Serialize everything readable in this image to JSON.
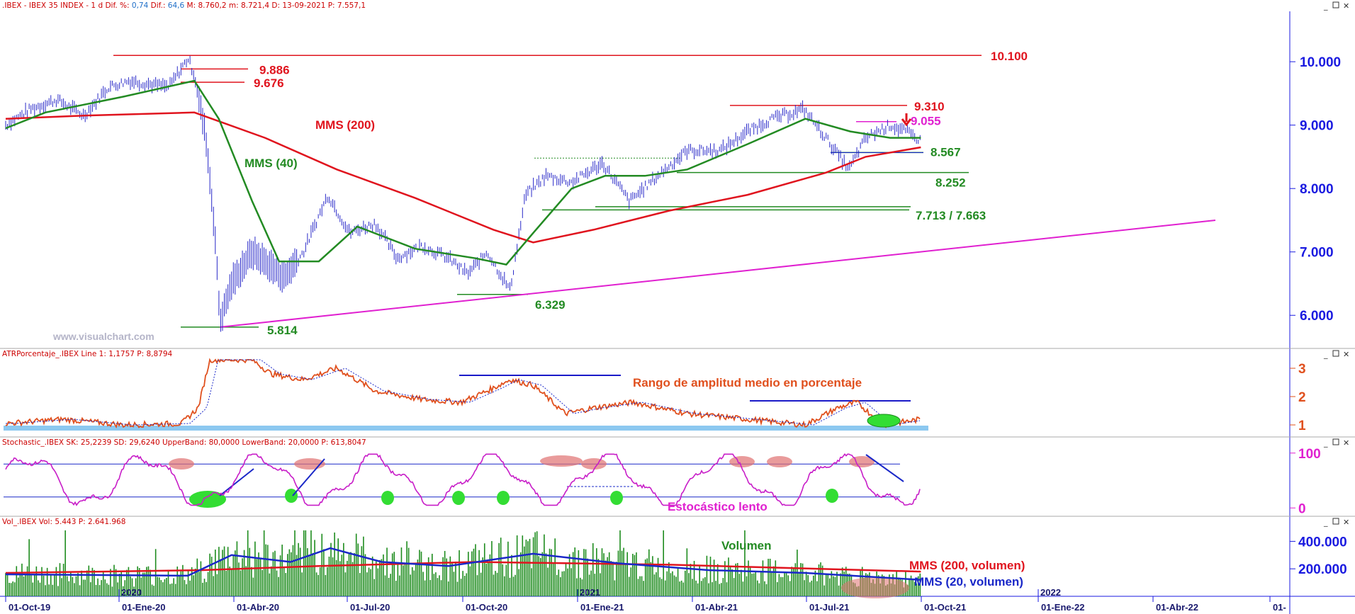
{
  "chart_data": [
    {
      "type": "line",
      "panel": "price",
      "title": ".IBEX - IBEX 35 INDEX - 1 d Dif. %: 0,74 Dif.: 64,6 M: 8.760,2 m: 8.721,4 D: 13-09-2021 P: 7.557,1",
      "title_parts": [
        {
          "text": ".IBEX - IBEX 35 INDEX - 1 d Dif. %: ",
          "color": "#cc0000"
        },
        {
          "text": "0,74",
          "color": "#1e6ec8"
        },
        {
          "text": " Dif.: ",
          "color": "#cc0000"
        },
        {
          "text": "64,6",
          "color": "#1e6ec8"
        },
        {
          "text": " M: 8.760,2 m: 8.721,4 D: 13-09-2021 P: 7.557,1",
          "color": "#cc0000"
        }
      ],
      "watermark": "www.visualchart.com",
      "y_ticks": [
        "10.000",
        "9.000",
        "8.000",
        "7.000",
        "6.000"
      ],
      "ylim": [
        5500,
        10750
      ],
      "price_path": [
        [
          "2019-10-01",
          9000
        ],
        [
          "2019-10-20",
          9250
        ],
        [
          "2019-11-10",
          9400
        ],
        [
          "2019-12-01",
          9150
        ],
        [
          "2019-12-20",
          9600
        ],
        [
          "2020-01-05",
          9700
        ],
        [
          "2020-01-20",
          9650
        ],
        [
          "2020-02-05",
          9600
        ],
        [
          "2020-02-20",
          10050
        ],
        [
          "2020-02-25",
          9800
        ],
        [
          "2020-03-05",
          8800
        ],
        [
          "2020-03-12",
          7300
        ],
        [
          "2020-03-16",
          5900
        ],
        [
          "2020-03-25",
          6500
        ],
        [
          "2020-04-10",
          7000
        ],
        [
          "2020-05-05",
          6600
        ],
        [
          "2020-05-20",
          7000
        ],
        [
          "2020-06-08",
          7900
        ],
        [
          "2020-06-25",
          7300
        ],
        [
          "2020-07-15",
          7450
        ],
        [
          "2020-08-01",
          6900
        ],
        [
          "2020-08-20",
          7100
        ],
        [
          "2020-09-10",
          6900
        ],
        [
          "2020-09-25",
          6650
        ],
        [
          "2020-10-10",
          7000
        ],
        [
          "2020-10-28",
          6400
        ],
        [
          "2020-11-09",
          7900
        ],
        [
          "2020-11-25",
          8200
        ],
        [
          "2020-12-15",
          8100
        ],
        [
          "2021-01-08",
          8400
        ],
        [
          "2021-01-29",
          7800
        ],
        [
          "2021-02-20",
          8200
        ],
        [
          "2021-03-15",
          8600
        ],
        [
          "2021-04-10",
          8600
        ],
        [
          "2021-05-01",
          8900
        ],
        [
          "2021-05-20",
          9100
        ],
        [
          "2021-06-14",
          9250
        ],
        [
          "2021-07-01",
          8800
        ],
        [
          "2021-07-19",
          8300
        ],
        [
          "2021-08-01",
          8800
        ],
        [
          "2021-08-20",
          9000
        ],
        [
          "2021-09-01",
          8900
        ],
        [
          "2021-09-13",
          8750
        ]
      ],
      "series": [
        {
          "name": "MMS (200)",
          "color": "#e0141e",
          "values": [
            [
              "2019-10-01",
              9100
            ],
            [
              "2019-12-01",
              9150
            ],
            [
              "2020-02-25",
              9200
            ],
            [
              "2020-04-20",
              8800
            ],
            [
              "2020-06-15",
              8300
            ],
            [
              "2020-08-15",
              7850
            ],
            [
              "2020-10-15",
              7350
            ],
            [
              "2020-11-15",
              7150
            ],
            [
              "2021-01-01",
              7350
            ],
            [
              "2021-03-01",
              7650
            ],
            [
              "2021-05-01",
              7900
            ],
            [
              "2021-07-01",
              8250
            ],
            [
              "2021-08-01",
              8500
            ],
            [
              "2021-09-13",
              8650
            ]
          ]
        },
        {
          "name": "MMS (40)",
          "color": "#238b23",
          "values": [
            [
              "2019-10-01",
              8950
            ],
            [
              "2019-11-01",
              9200
            ],
            [
              "2020-01-01",
              9450
            ],
            [
              "2020-02-25",
              9700
            ],
            [
              "2020-03-15",
              9100
            ],
            [
              "2020-04-10",
              7800
            ],
            [
              "2020-05-01",
              6850
            ],
            [
              "2020-06-01",
              6850
            ],
            [
              "2020-07-01",
              7400
            ],
            [
              "2020-08-15",
              7050
            ],
            [
              "2020-10-01",
              6900
            ],
            [
              "2020-10-25",
              6800
            ],
            [
              "2020-11-15",
              7300
            ],
            [
              "2020-12-15",
              8000
            ],
            [
              "2021-01-10",
              8200
            ],
            [
              "2021-02-10",
              8200
            ],
            [
              "2021-03-15",
              8300
            ],
            [
              "2021-05-01",
              8700
            ],
            [
              "2021-06-15",
              9100
            ],
            [
              "2021-07-20",
              8900
            ],
            [
              "2021-08-20",
              8800
            ],
            [
              "2021-09-13",
              8800
            ]
          ]
        }
      ],
      "levels": [
        {
          "label": "10.100",
          "value": 10100,
          "color": "#e0141e"
        },
        {
          "label": "9.886",
          "value": 9886,
          "color": "#e0141e"
        },
        {
          "label": "9.676",
          "value": 9676,
          "color": "#e0141e"
        },
        {
          "label": "9.310",
          "value": 9310,
          "color": "#e0141e"
        },
        {
          "label": "9.055",
          "value": 9055,
          "color": "#e020d0"
        },
        {
          "label": "8.567",
          "value": 8567,
          "color": "#238b23"
        },
        {
          "label": "8.252",
          "value": 8252,
          "color": "#238b23"
        },
        {
          "label": "7.713 / 7.663",
          "value": 7713,
          "value2": 7663,
          "color": "#238b23"
        },
        {
          "label": "6.329",
          "value": 6329,
          "color": "#238b23"
        },
        {
          "label": "5.814",
          "value": 5814,
          "color": "#238b23"
        }
      ],
      "trendline": {
        "color": "#e020d0",
        "from": [
          "2020-03-16",
          5814
        ],
        "to": [
          "2022-04-30",
          7500
        ]
      },
      "annotations": [
        "MMS (200)",
        "MMS (40)"
      ]
    },
    {
      "type": "line",
      "panel": "atr",
      "title": "ATRPorcentaje_.IBEX Line 1: 1,1757 P: 8,8794",
      "y_ticks": [
        "3",
        "2",
        "1"
      ],
      "ylim": [
        0.7,
        3.3
      ],
      "annotation": "Rango de amplitud medio en porcentaje",
      "series": [
        {
          "name": "ATR %",
          "color": "#e0501e",
          "values": [
            [
              "2019-10-01",
              1.05
            ],
            [
              "2019-11-15",
              1.2
            ],
            [
              "2020-01-01",
              1.0
            ],
            [
              "2020-02-15",
              1.05
            ],
            [
              "2020-02-28",
              1.6
            ],
            [
              "2020-03-08",
              3.3
            ],
            [
              "2020-04-10",
              3.3
            ],
            [
              "2020-04-25",
              2.8
            ],
            [
              "2020-05-20",
              2.6
            ],
            [
              "2020-06-15",
              3.0
            ],
            [
              "2020-07-15",
              2.2
            ],
            [
              "2020-08-20",
              1.9
            ],
            [
              "2020-09-20",
              1.8
            ],
            [
              "2020-10-15",
              2.3
            ],
            [
              "2020-10-28",
              2.6
            ],
            [
              "2020-11-15",
              2.4
            ],
            [
              "2020-12-10",
              1.4
            ],
            [
              "2021-01-01",
              1.6
            ],
            [
              "2021-02-01",
              1.8
            ],
            [
              "2021-03-15",
              1.4
            ],
            [
              "2021-05-01",
              1.2
            ],
            [
              "2021-06-15",
              1.0
            ],
            [
              "2021-07-10",
              1.6
            ],
            [
              "2021-07-25",
              1.8
            ],
            [
              "2021-08-15",
              1.0
            ],
            [
              "2021-09-13",
              1.2
            ]
          ]
        }
      ]
    },
    {
      "type": "line",
      "panel": "stochastic",
      "title": "Stochastic_.IBEX SK: 25,2239 SD: 29,6240 UpperBand: 80,0000 LowerBand: 20,0000 P: 613,8047",
      "y_ticks": [
        "100",
        "0"
      ],
      "ylim": [
        -10,
        110
      ],
      "bands": [
        80,
        20
      ],
      "annotation": "Estocástico lento",
      "series": [
        {
          "name": "SK",
          "color": "#c81ec8",
          "values": []
        }
      ]
    },
    {
      "type": "bar",
      "panel": "volume",
      "title": "Vol_.IBEX Vol: 5.443 P: 2.641.968",
      "y_ticks": [
        "400.000",
        "200.000"
      ],
      "ylim": [
        0,
        500000
      ],
      "annotations": [
        "Volumen",
        "MMS (200, volumen)",
        "MMS (20, volumen)"
      ],
      "series": [
        {
          "name": "MMS (200, volumen)",
          "color": "#e0141e",
          "values": [
            [
              "2019-10-01",
              170000
            ],
            [
              "2020-03-01",
              190000
            ],
            [
              "2020-06-01",
              220000
            ],
            [
              "2020-10-01",
              250000
            ],
            [
              "2021-03-01",
              230000
            ],
            [
              "2021-09-13",
              180000
            ]
          ]
        },
        {
          "name": "MMS (20, volumen)",
          "color": "#1a28c8",
          "values": [
            [
              "2019-10-01",
              160000
            ],
            [
              "2020-02-20",
              150000
            ],
            [
              "2020-03-25",
              300000
            ],
            [
              "2020-05-10",
              250000
            ],
            [
              "2020-06-10",
              350000
            ],
            [
              "2020-07-20",
              250000
            ],
            [
              "2020-09-10",
              220000
            ],
            [
              "2020-11-15",
              310000
            ],
            [
              "2021-01-20",
              240000
            ],
            [
              "2021-04-01",
              190000
            ],
            [
              "2021-06-15",
              170000
            ],
            [
              "2021-09-13",
              120000
            ]
          ]
        }
      ]
    }
  ],
  "x_axis": {
    "labels": [
      "01-Oct-19",
      "01-Ene-20",
      "01-Abr-20",
      "01-Jul-20",
      "01-Oct-20",
      "01-Ene-21",
      "01-Abr-21",
      "01-Jul-21",
      "01-Oct-21",
      "01-Ene-22",
      "01-Abr-22",
      "01-"
    ],
    "year_labels": [
      "2020",
      "2021",
      "2022"
    ]
  },
  "colors": {
    "price_bars": "#2828c8",
    "axis_text": "#1a1ae0",
    "atr_axis": "#e0501e",
    "stoch_axis": "#e020d0",
    "volume_bars": "#1e8c1e",
    "lowlight_bar": "#8cc8f0"
  }
}
